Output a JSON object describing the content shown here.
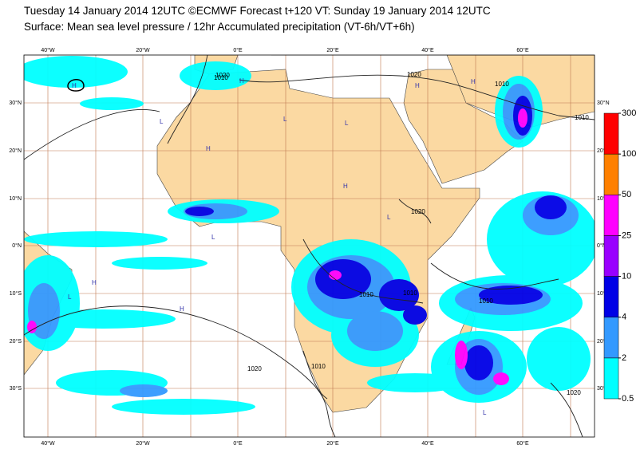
{
  "header": {
    "title": "Tuesday 14 January 2014 12UTC ©ECMWF Forecast t+120 VT: Sunday 19 January 2014 12UTC",
    "subtitle": "Surface: Mean sea level pressure / 12hr Accumulated precipitation (VT-6h/VT+6h)"
  },
  "map": {
    "lon_labels": [
      "40°W",
      "20°W",
      "0°E",
      "20°E",
      "40°E",
      "60°E"
    ],
    "lat_labels": [
      "30°N",
      "20°N",
      "10°N",
      "0°N",
      "10°S",
      "20°S",
      "30°S"
    ],
    "isobar_labels": [
      "1010",
      "1020",
      "1020",
      "1010",
      "1010",
      "1020",
      "1010",
      "1010",
      "1010",
      "1020",
      "1010",
      "1020"
    ],
    "pressure_centres": [
      "H",
      "H",
      "L",
      "H",
      "L",
      "H",
      "L",
      "H",
      "H",
      "L",
      "H",
      "L",
      "H",
      "L",
      "L"
    ]
  },
  "legend": {
    "levels": [
      0.5,
      2,
      4,
      10,
      25,
      50,
      100,
      300
    ],
    "colors": [
      "#00ffff",
      "#3399ff",
      "#0000e6",
      "#9900ff",
      "#ff00ff",
      "#ff8000",
      "#ff0000"
    ]
  }
}
